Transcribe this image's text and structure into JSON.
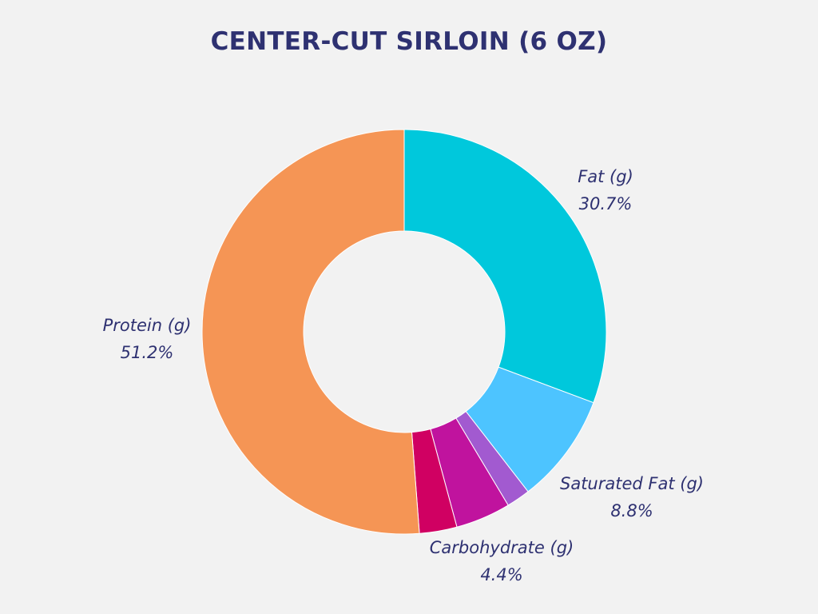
{
  "chart_data": {
    "type": "pie",
    "style": "donut",
    "title": "CENTER-CUT SIRLOIN (6 OZ)",
    "slices": [
      {
        "name": "Fat (g)",
        "value": 30.7,
        "percent_label": "30.7%",
        "color": "#00c8dc",
        "labeled": true
      },
      {
        "name": "Saturated Fat (g)",
        "value": 8.8,
        "percent_label": "8.8%",
        "color": "#4dc4ff",
        "labeled": true
      },
      {
        "name": "",
        "value": 1.9,
        "percent_label": "",
        "color": "#a25ad0",
        "labeled": false
      },
      {
        "name": "Carbohydrate (g)",
        "value": 4.4,
        "percent_label": "4.4%",
        "color": "#c0139e",
        "labeled": true
      },
      {
        "name": "",
        "value": 3.0,
        "percent_label": "",
        "color": "#d00062",
        "labeled": false
      },
      {
        "name": "Protein (g)",
        "value": 51.2,
        "percent_label": "51.2%",
        "color": "#f59555",
        "labeled": true
      }
    ],
    "start": "12 o'clock",
    "direction": "clockwise"
  },
  "colors": {
    "background": "#f2f2f2",
    "text": "#2e3171",
    "slice_separator": "#ffffff"
  }
}
